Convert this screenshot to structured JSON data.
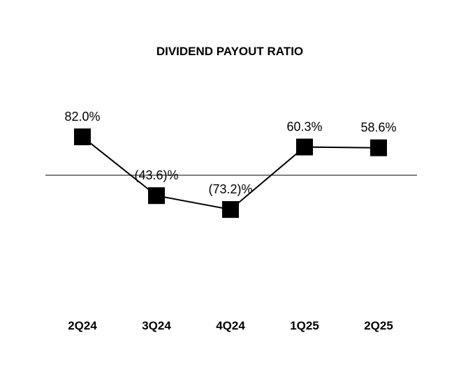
{
  "chart_data": {
    "type": "line",
    "title": "DIVIDEND PAYOUT RATIO",
    "categories": [
      "2Q24",
      "3Q24",
      "4Q24",
      "1Q25",
      "2Q25"
    ],
    "values": [
      82.0,
      -43.6,
      -73.2,
      60.3,
      58.6
    ],
    "data_labels": [
      "82.0%",
      "(43.6)%",
      "(73.2)%",
      "60.3%",
      "58.6%"
    ],
    "baseline": 0,
    "grid": false,
    "legend": "none",
    "colors": {
      "line": "#000000",
      "marker": "#000000",
      "baseline": "#808080"
    }
  }
}
